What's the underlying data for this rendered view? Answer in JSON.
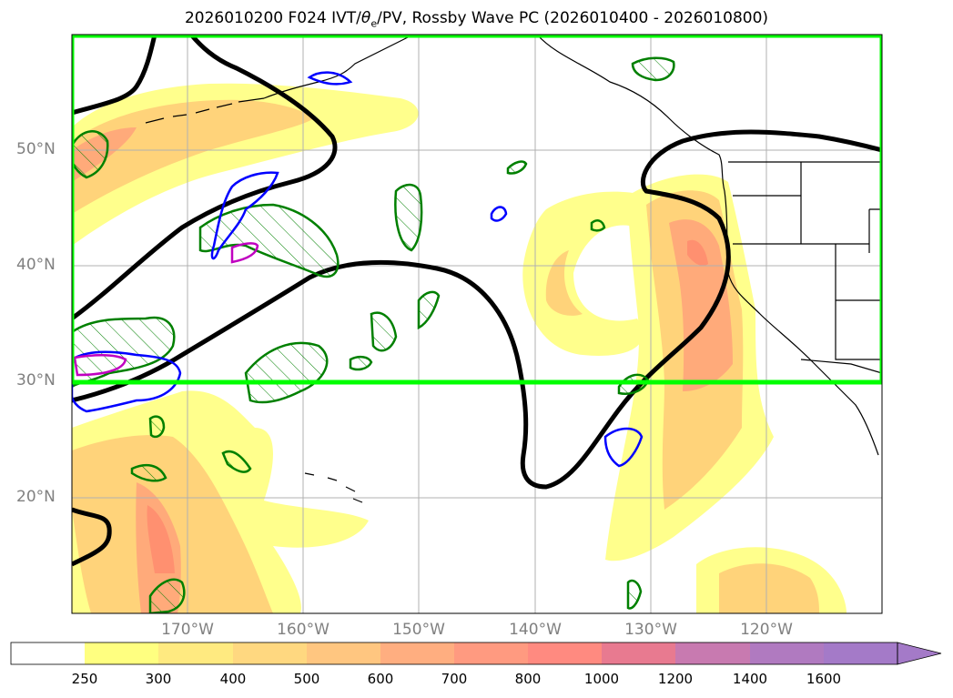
{
  "title_main": "2026010200 F024 IVT/",
  "title_theta": "θ",
  "title_theta_sub": "e",
  "title_rest": "/PV, Rossby Wave PC (2026010400 - 2026010800)",
  "map": {
    "lat_labels": [
      "50°N",
      "40°N",
      "30°N",
      "20°N"
    ],
    "lon_labels": [
      "170°W",
      "160°W",
      "150°W",
      "140°W",
      "130°W",
      "120°W"
    ],
    "highlight_box": {
      "color": "#00ff00",
      "lat_min": 30,
      "lat_max": 60
    }
  },
  "colorbar": {
    "ticks": [
      "250",
      "300",
      "400",
      "500",
      "600",
      "700",
      "800",
      "1000",
      "1200",
      "1400",
      "1600"
    ],
    "colors": [
      "#ffffff",
      "#ffff80",
      "#ffea80",
      "#ffd880",
      "#ffc680",
      "#ffae80",
      "#ff9a80",
      "#ff8a80",
      "#e87a90",
      "#c87ab0",
      "#b07ac0",
      "#a47ac8"
    ],
    "extend": "max"
  },
  "colors": {
    "ivt_light": "#ffff8c",
    "ivt_mid": "#ffd37a",
    "ivt_high": "#ffaa7a",
    "ivt_peak": "#ff9070",
    "rossby_contour": "#000000",
    "pos_pc": "#008000",
    "neg_pc": "#0000ff",
    "magenta": "#c000c0",
    "gridline": "#b0b0b0",
    "coast": "#000000"
  }
}
